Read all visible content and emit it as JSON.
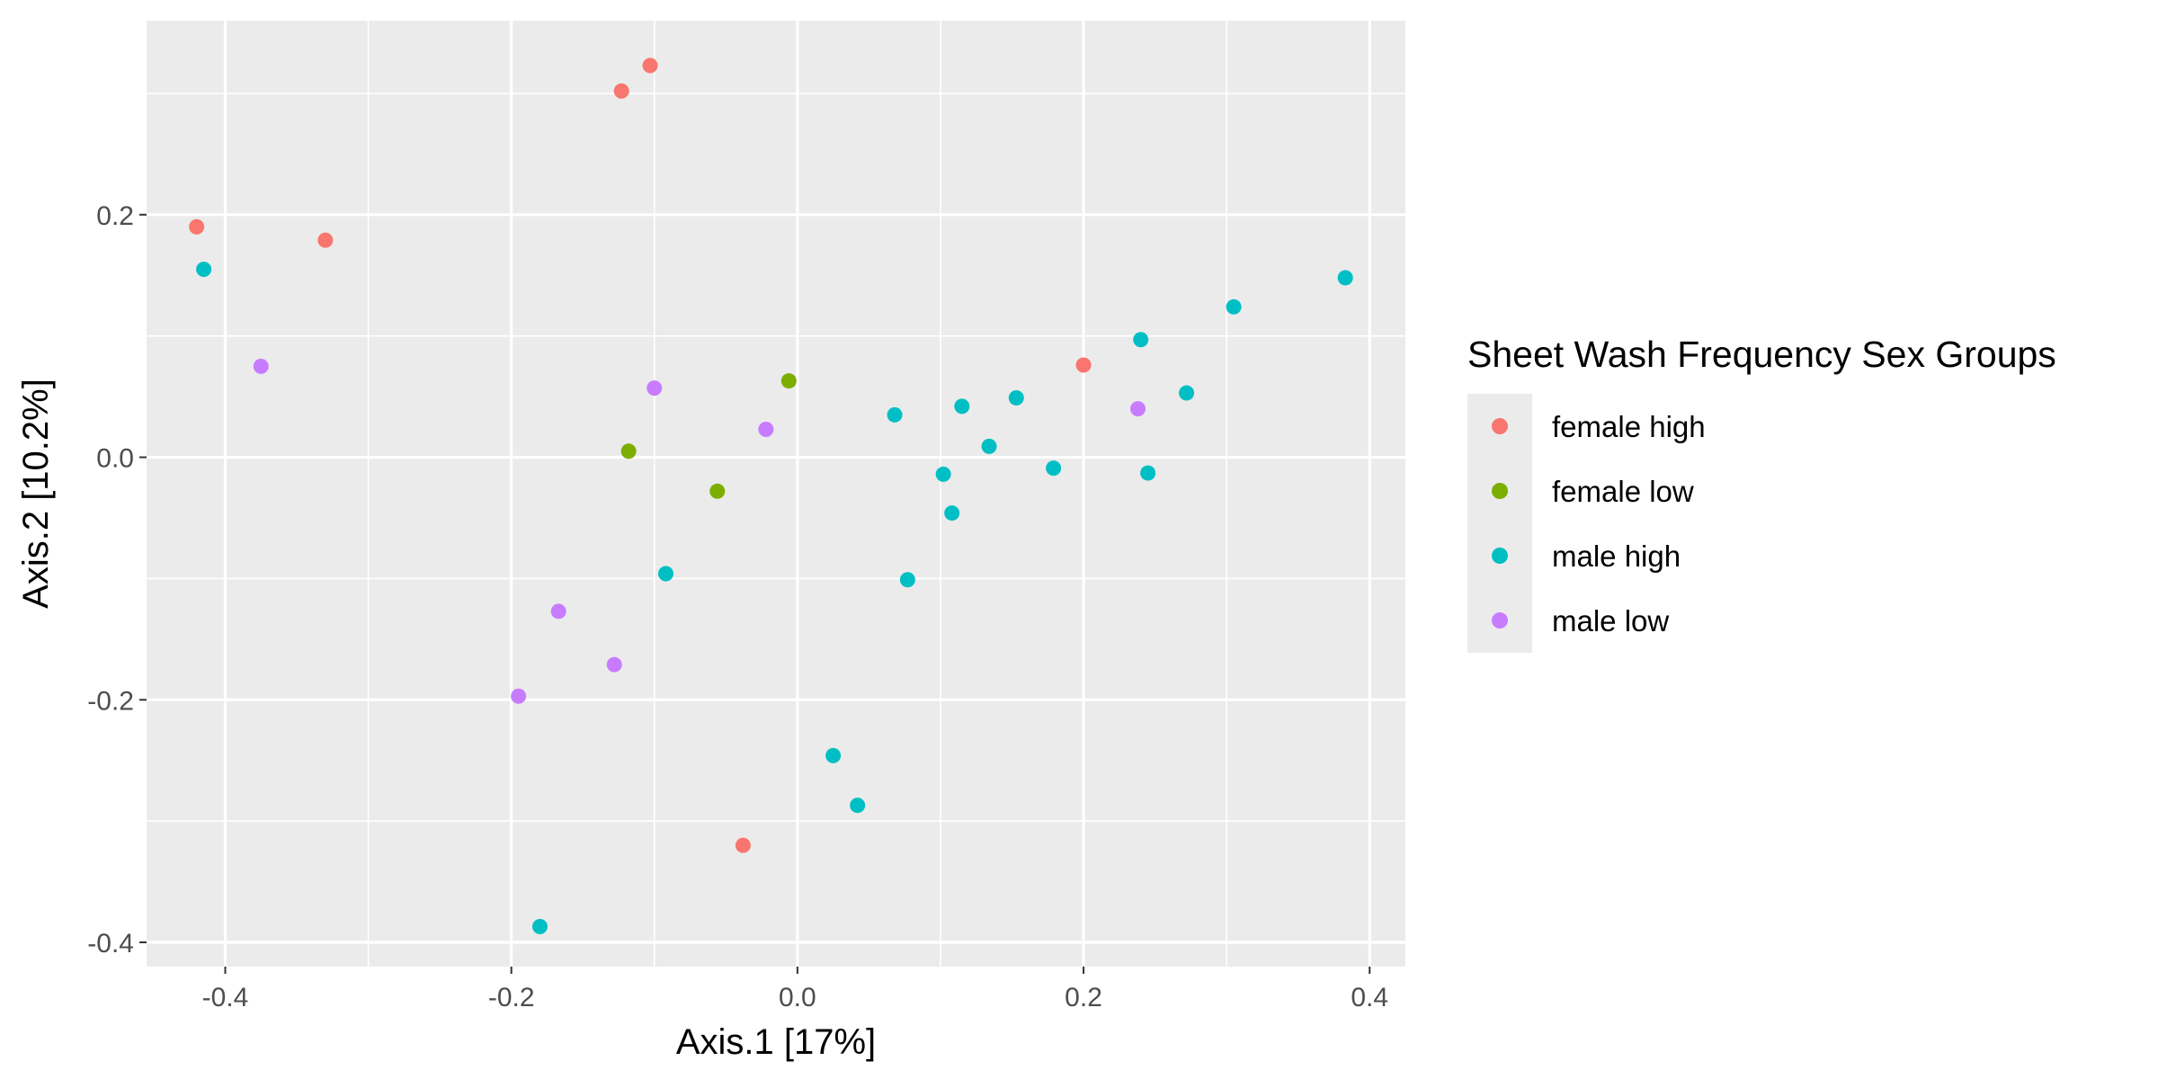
{
  "chart_data": {
    "type": "scatter",
    "title": "",
    "xlabel": "Axis.1   [17%]",
    "ylabel": "Axis.2   [10.2%]",
    "xlim": [
      -0.455,
      0.425
    ],
    "ylim": [
      -0.42,
      0.36
    ],
    "x_ticks": [
      -0.4,
      -0.2,
      0.0,
      0.2,
      0.4
    ],
    "x_tick_labels": [
      "-0.4",
      "-0.2",
      "0.0",
      "0.2",
      "0.4"
    ],
    "y_ticks": [
      -0.4,
      -0.2,
      0.0,
      0.2
    ],
    "y_tick_labels": [
      "-0.4",
      "-0.2",
      "0.0",
      "0.2"
    ],
    "grid": true,
    "legend": {
      "title": "Sheet Wash Frequency Sex Groups",
      "position": "right"
    },
    "series": [
      {
        "name": "female high",
        "color": "#F8766D",
        "points": [
          {
            "x": -0.42,
            "y": 0.19
          },
          {
            "x": -0.33,
            "y": 0.179
          },
          {
            "x": -0.123,
            "y": 0.302
          },
          {
            "x": -0.103,
            "y": 0.323
          },
          {
            "x": 0.2,
            "y": 0.076
          },
          {
            "x": -0.038,
            "y": -0.32
          }
        ]
      },
      {
        "name": "female low",
        "color": "#7CAE00",
        "points": [
          {
            "x": -0.006,
            "y": 0.063
          },
          {
            "x": -0.118,
            "y": 0.005
          },
          {
            "x": -0.056,
            "y": -0.028
          }
        ]
      },
      {
        "name": "male high",
        "color": "#00BFC4",
        "points": [
          {
            "x": -0.415,
            "y": 0.155
          },
          {
            "x": 0.068,
            "y": 0.035
          },
          {
            "x": 0.115,
            "y": 0.042
          },
          {
            "x": 0.153,
            "y": 0.049
          },
          {
            "x": 0.134,
            "y": 0.009
          },
          {
            "x": 0.24,
            "y": 0.097
          },
          {
            "x": 0.305,
            "y": 0.124
          },
          {
            "x": 0.383,
            "y": 0.148
          },
          {
            "x": 0.272,
            "y": 0.053
          },
          {
            "x": 0.179,
            "y": -0.009
          },
          {
            "x": 0.245,
            "y": -0.013
          },
          {
            "x": 0.102,
            "y": -0.014
          },
          {
            "x": 0.108,
            "y": -0.046
          },
          {
            "x": 0.077,
            "y": -0.101
          },
          {
            "x": -0.092,
            "y": -0.096
          },
          {
            "x": 0.025,
            "y": -0.246
          },
          {
            "x": 0.042,
            "y": -0.287
          },
          {
            "x": -0.18,
            "y": -0.387
          }
        ]
      },
      {
        "name": "male low",
        "color": "#C77CFF",
        "points": [
          {
            "x": -0.375,
            "y": 0.075
          },
          {
            "x": -0.1,
            "y": 0.057
          },
          {
            "x": -0.022,
            "y": 0.023
          },
          {
            "x": 0.238,
            "y": 0.04
          },
          {
            "x": -0.167,
            "y": -0.127
          },
          {
            "x": -0.128,
            "y": -0.171
          },
          {
            "x": -0.195,
            "y": -0.197
          }
        ]
      }
    ]
  }
}
